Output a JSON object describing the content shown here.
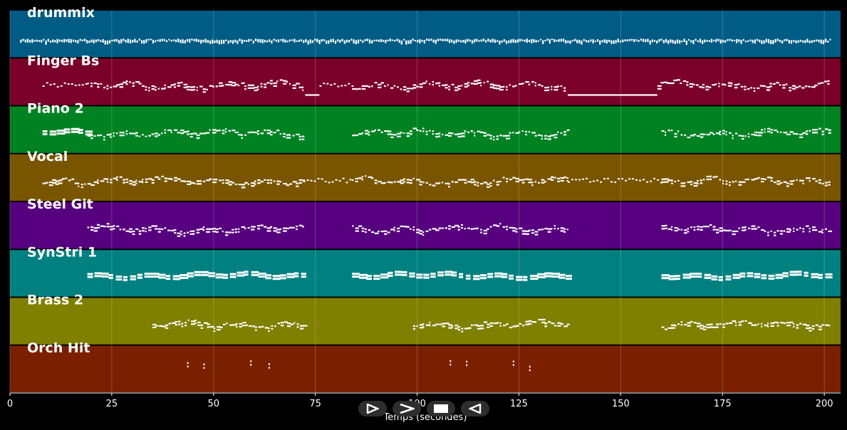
{
  "chart_data": {
    "type": "piano-roll",
    "xlabel": "Temps (secondes)",
    "xlim": [
      0,
      204
    ],
    "xticks": [
      0,
      25,
      50,
      75,
      100,
      125,
      150,
      175,
      200
    ],
    "grid": true,
    "tracks": [
      {
        "name": "drummix",
        "color": "#005c85",
        "segments": [
          [
            2.5,
            201.5,
            "dense-low"
          ]
        ]
      },
      {
        "name": "Finger Bs",
        "color": "#7a002a",
        "segments": [
          [
            8,
            19,
            "sparse"
          ],
          [
            19,
            72.5,
            "dense"
          ],
          [
            72.5,
            76,
            "low"
          ],
          [
            76,
            84,
            "sparse"
          ],
          [
            84,
            136,
            "dense"
          ],
          [
            137,
            159,
            "low"
          ],
          [
            159,
            201.5,
            "dense"
          ]
        ]
      },
      {
        "name": "Piano 2",
        "color": "#008222",
        "segments": [
          [
            8,
            19,
            "chords"
          ],
          [
            19,
            72,
            "dense"
          ],
          [
            84,
            137,
            "dense"
          ],
          [
            160,
            201.5,
            "dense"
          ]
        ]
      },
      {
        "name": "Vocal",
        "color": "#7a5500",
        "segments": [
          [
            8,
            72,
            "dense"
          ],
          [
            72,
            84,
            "sparse"
          ],
          [
            84,
            137,
            "dense"
          ],
          [
            137,
            160,
            "sparse"
          ],
          [
            160,
            201.5,
            "dense"
          ]
        ]
      },
      {
        "name": "Steel Git",
        "color": "#57007f",
        "segments": [
          [
            19,
            72.5,
            "dense"
          ],
          [
            84,
            137,
            "dense"
          ],
          [
            160,
            201.5,
            "dense"
          ]
        ]
      },
      {
        "name": "SynStri 1",
        "color": "#008080",
        "segments": [
          [
            19,
            72.5,
            "chords"
          ],
          [
            84,
            136.5,
            "chords"
          ],
          [
            160,
            201.5,
            "chords"
          ]
        ]
      },
      {
        "name": "Brass 2",
        "color": "#7f7f00",
        "segments": [
          [
            35,
            72.5,
            "dense"
          ],
          [
            99,
            137,
            "dense"
          ],
          [
            160,
            201.5,
            "dense"
          ]
        ]
      },
      {
        "name": "Orch Hit",
        "color": "#7a2000",
        "hits": [
          43.5,
          47.5,
          59,
          63.5,
          108,
          112,
          123.5,
          127.5
        ]
      }
    ]
  },
  "controls": {
    "play_forward_label": "▷",
    "next_label": ">",
    "stop_label": "■",
    "play_back_label": "◁"
  }
}
